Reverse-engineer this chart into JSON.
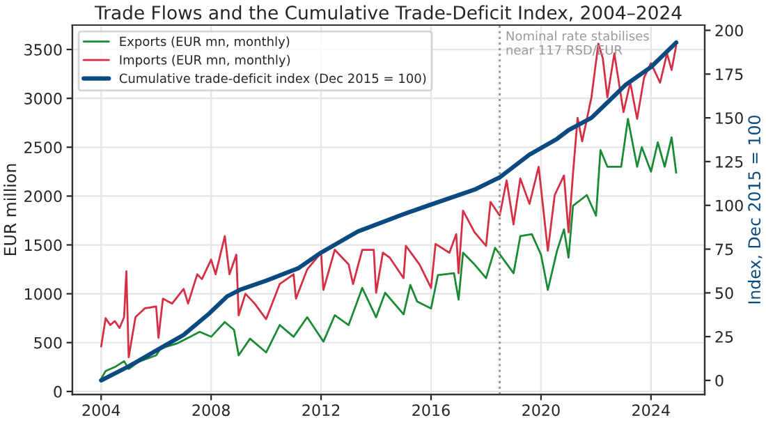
{
  "chart_data": {
    "type": "line",
    "title": "Trade Flows and the Cumulative Trade-Deficit Index, 2004–2024",
    "ylabel": "EUR million",
    "y2label": "Index, Dec 2015 = 100",
    "xlim": [
      "2002-12-15",
      "2025-12-15"
    ],
    "xticks": [
      {
        "value": "2004-01-01",
        "label": "2004"
      },
      {
        "value": "2008-01-01",
        "label": "2008"
      },
      {
        "value": "2012-01-01",
        "label": "2012"
      },
      {
        "value": "2016-01-01",
        "label": "2016"
      },
      {
        "value": "2020-01-01",
        "label": "2020"
      },
      {
        "value": "2024-01-01",
        "label": "2024"
      }
    ],
    "ylim": [
      -30,
      3750
    ],
    "yticks": [
      0,
      500,
      1000,
      1500,
      2000,
      2500,
      3000,
      3500
    ],
    "y2lim": [
      -8,
      203
    ],
    "y2ticks": [
      0,
      25,
      50,
      75,
      100,
      125,
      150,
      175,
      200
    ],
    "grid": true,
    "legend": "top left",
    "ref_lines": [
      {
        "axis": "x",
        "value": "2018-07",
        "label": "Nominal rate stabilises\nnear 117 RSD/EUR",
        "color": "#999999",
        "line_style": "dotted"
      }
    ],
    "series": [
      {
        "name": "Exports (EUR mn, monthly)",
        "color": "#1a8a34",
        "x": [
          "2004-01",
          "2004-03",
          "2004-07",
          "2004-11",
          "2005-01",
          "2005-05",
          "2006-01",
          "2006-03",
          "2006-10",
          "2007-04",
          "2007-08",
          "2008-01",
          "2008-07",
          "2008-11",
          "2009-01",
          "2009-06",
          "2010-01",
          "2010-07",
          "2011-01",
          "2011-07",
          "2012-02",
          "2012-07",
          "2013-01",
          "2013-07",
          "2014-01",
          "2014-05",
          "2015-01",
          "2015-04",
          "2015-07",
          "2016-01",
          "2016-04",
          "2016-11",
          "2017-01",
          "2017-03",
          "2017-08",
          "2018-01",
          "2018-05",
          "2019-01",
          "2019-04",
          "2019-09",
          "2020-01",
          "2020-04",
          "2020-08",
          "2020-11",
          "2021-01",
          "2021-03",
          "2021-09",
          "2022-01",
          "2022-03",
          "2022-06",
          "2022-12",
          "2023-03",
          "2023-07",
          "2023-09",
          "2024-01",
          "2024-04",
          "2024-07",
          "2024-10",
          "2024-12"
        ],
        "values": [
          130,
          210,
          250,
          310,
          230,
          300,
          370,
          440,
          490,
          560,
          610,
          560,
          710,
          630,
          370,
          540,
          400,
          680,
          560,
          760,
          510,
          780,
          680,
          1060,
          760,
          1010,
          790,
          1090,
          920,
          850,
          1190,
          1210,
          940,
          1420,
          1300,
          1160,
          1470,
          1210,
          1590,
          1610,
          1400,
          1040,
          1440,
          1660,
          1370,
          1900,
          2010,
          1800,
          2470,
          2300,
          2300,
          2790,
          2300,
          2500,
          2250,
          2550,
          2300,
          2600,
          2240
        ]
      },
      {
        "name": "Imports (EUR mn, monthly)",
        "color": "#d62f45",
        "x": [
          "2004-01",
          "2004-03",
          "2004-05",
          "2004-07",
          "2004-09",
          "2004-11",
          "2004-12",
          "2005-01",
          "2005-04",
          "2005-08",
          "2006-01",
          "2006-02",
          "2006-04",
          "2006-08",
          "2007-01",
          "2007-03",
          "2007-07",
          "2007-09",
          "2008-01",
          "2008-03",
          "2008-07",
          "2008-09",
          "2008-12",
          "2009-01",
          "2009-04",
          "2009-08",
          "2010-01",
          "2010-07",
          "2011-01",
          "2011-02",
          "2011-07",
          "2012-01",
          "2012-02",
          "2012-07",
          "2013-01",
          "2013-03",
          "2013-07",
          "2013-12",
          "2014-01",
          "2014-04",
          "2014-07",
          "2015-01",
          "2015-02",
          "2015-08",
          "2016-01",
          "2016-03",
          "2016-09",
          "2016-12",
          "2017-01",
          "2017-03",
          "2017-08",
          "2018-01",
          "2018-03",
          "2018-07",
          "2018-10",
          "2019-01",
          "2019-04",
          "2019-08",
          "2019-12",
          "2020-04",
          "2020-07",
          "2020-11",
          "2021-01",
          "2021-03",
          "2021-05",
          "2021-07",
          "2021-11",
          "2022-02",
          "2022-04",
          "2022-06",
          "2022-09",
          "2023-01",
          "2023-04",
          "2023-07",
          "2023-10",
          "2024-01",
          "2024-05",
          "2024-08",
          "2024-10",
          "2024-12"
        ],
        "values": [
          460,
          750,
          680,
          720,
          650,
          760,
          1230,
          350,
          760,
          850,
          870,
          550,
          950,
          900,
          1050,
          900,
          1200,
          1150,
          1350,
          1200,
          1590,
          1200,
          1400,
          780,
          1000,
          900,
          740,
          1100,
          1200,
          950,
          1250,
          1420,
          1040,
          1450,
          1300,
          1100,
          1450,
          1450,
          1010,
          1420,
          1370,
          1160,
          1490,
          1300,
          1060,
          1510,
          1420,
          1610,
          1210,
          1850,
          1630,
          1490,
          1940,
          1800,
          2160,
          1710,
          2180,
          1920,
          2300,
          1440,
          2010,
          2210,
          1630,
          2230,
          2800,
          2560,
          3010,
          3560,
          3410,
          3010,
          3460,
          2860,
          3160,
          2790,
          3210,
          3360,
          3160,
          3460,
          3290,
          3540
        ]
      },
      {
        "name": "Cumulative trade-deficit index (Dec 2015 = 100)",
        "color": "#0b4a80",
        "axis": "y2",
        "x": [
          "2004-01",
          "2005-01",
          "2006-01",
          "2007-01",
          "2007-12",
          "2008-08",
          "2009-02",
          "2010-01",
          "2011-03",
          "2012-01",
          "2013-05",
          "2015-01",
          "2015-12",
          "2017-08",
          "2018-07",
          "2019-08",
          "2020-08",
          "2021-01",
          "2021-11",
          "2022-07",
          "2023-02",
          "2024-01",
          "2024-12"
        ],
        "values": [
          0,
          8,
          17,
          26,
          38,
          48,
          52,
          57,
          64,
          73,
          85,
          95,
          100,
          109,
          116,
          129,
          138,
          143,
          150,
          160,
          169,
          179,
          193
        ]
      }
    ]
  }
}
